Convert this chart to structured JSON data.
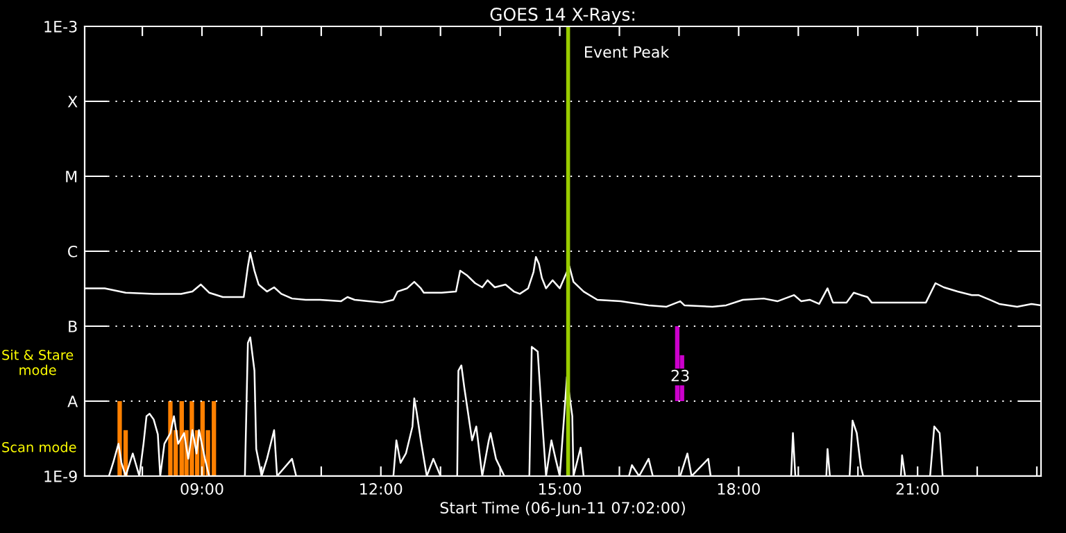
{
  "chart_data": {
    "type": "line",
    "title": "GOES 14 X-Rays:",
    "xlabel": "Start Time (06-Jun-11 07:02:00)",
    "log": "y",
    "grid": "y",
    "line_style": "solid",
    "marker": "none",
    "legend": false,
    "xlim": [
      7.033,
      23.07
    ],
    "ylim": [
      1e-09,
      0.001
    ],
    "xticks": [
      {
        "value": 8,
        "label": null
      },
      {
        "value": 9,
        "label": "09:00"
      },
      {
        "value": 10,
        "label": null
      },
      {
        "value": 11,
        "label": null
      },
      {
        "value": 12,
        "label": "12:00"
      },
      {
        "value": 13,
        "label": null
      },
      {
        "value": 14,
        "label": null
      },
      {
        "value": 15,
        "label": "15:00"
      },
      {
        "value": 16,
        "label": null
      },
      {
        "value": 17,
        "label": null
      },
      {
        "value": 18,
        "label": "18:00"
      },
      {
        "value": 19,
        "label": null
      },
      {
        "value": 20,
        "label": null
      },
      {
        "value": 21,
        "label": "21:00"
      },
      {
        "value": 22,
        "label": null
      },
      {
        "value": 23,
        "label": null
      }
    ],
    "yticks": [
      {
        "value": 1e-09,
        "label": "1E-9"
      },
      {
        "value": 1e-08,
        "label": "A"
      },
      {
        "value": 1e-07,
        "label": "B"
      },
      {
        "value": 1e-06,
        "label": "C"
      },
      {
        "value": 1e-05,
        "label": "M"
      },
      {
        "value": 0.0001,
        "label": "X"
      },
      {
        "value": 0.001,
        "label": "1E-3"
      }
    ],
    "series": [
      {
        "type": "bar",
        "color": "#ff8000",
        "x": [
          7.62,
          7.72,
          8.47,
          8.56,
          8.66,
          8.74,
          8.83,
          8.92,
          9.01,
          9.1,
          9.2
        ],
        "values": [
          1e-08,
          4.1e-09,
          1e-08,
          4.1e-09,
          1e-08,
          4.1e-09,
          1e-08,
          4.1e-09,
          1e-08,
          4.1e-09,
          1e-08
        ]
      },
      {
        "type": "bar",
        "color": "#cc00cc",
        "x": [
          16.97,
          17.05
        ],
        "base": [
          1e-08,
          1e-08
        ],
        "values": [
          9e-08,
          3.1e-08
        ]
      },
      {
        "color": "#ffffff",
        "x": [
          7.04,
          7.37,
          7.72,
          8.19,
          8.65,
          8.84,
          8.98,
          9.12,
          9.35,
          9.7,
          9.77,
          9.81,
          9.88,
          9.95,
          10.09,
          10.21,
          10.33,
          10.51,
          10.74,
          10.98,
          11.33,
          11.44,
          11.56,
          11.79,
          12.02,
          12.21,
          12.28,
          12.44,
          12.56,
          12.67,
          12.72,
          13.02,
          13.26,
          13.33,
          13.44,
          13.58,
          13.7,
          13.79,
          13.91,
          14.09,
          14.23,
          14.33,
          14.47,
          14.56,
          14.6,
          14.65,
          14.7,
          14.77,
          14.88,
          15.0,
          15.16,
          15.23,
          15.4,
          15.63,
          16.02,
          16.49,
          16.79,
          17.02,
          17.09,
          17.56,
          17.79,
          18.07,
          18.42,
          18.65,
          18.93,
          19.05,
          19.19,
          19.35,
          19.49,
          19.58,
          19.81,
          19.93,
          20.05,
          20.16,
          20.23,
          20.67,
          21.14,
          21.3,
          21.44,
          21.67,
          21.91,
          22.02,
          22.21,
          22.37,
          22.67,
          22.91,
          23.07
        ],
        "values": [
          3.2e-07,
          3.2e-07,
          2.8e-07,
          2.7e-07,
          2.7e-07,
          2.9e-07,
          3.6e-07,
          2.8e-07,
          2.45e-07,
          2.45e-07,
          6.3e-07,
          9.6e-07,
          5.5e-07,
          3.6e-07,
          2.9e-07,
          3.3e-07,
          2.7e-07,
          2.34e-07,
          2.25e-07,
          2.25e-07,
          2.15e-07,
          2.45e-07,
          2.25e-07,
          2.15e-07,
          2.07e-07,
          2.25e-07,
          2.9e-07,
          3.2e-07,
          3.9e-07,
          3.2e-07,
          2.8e-07,
          2.8e-07,
          2.9e-07,
          5.5e-07,
          4.8e-07,
          3.75e-07,
          3.3e-07,
          4.1e-07,
          3.3e-07,
          3.6e-07,
          2.9e-07,
          2.7e-07,
          3.2e-07,
          5.3e-07,
          8.4e-07,
          6.8e-07,
          4.4e-07,
          3.2e-07,
          4.1e-07,
          3.2e-07,
          6.3e-07,
          3.9e-07,
          2.9e-07,
          2.25e-07,
          2.15e-07,
          1.9e-07,
          1.82e-07,
          2.15e-07,
          1.9e-07,
          1.82e-07,
          1.9e-07,
          2.25e-07,
          2.34e-07,
          2.15e-07,
          2.6e-07,
          2.15e-07,
          2.25e-07,
          1.98e-07,
          3.2e-07,
          2.07e-07,
          2.07e-07,
          2.8e-07,
          2.6e-07,
          2.45e-07,
          2.07e-07,
          2.07e-07,
          2.07e-07,
          3.75e-07,
          3.3e-07,
          2.9e-07,
          2.6e-07,
          2.6e-07,
          2.25e-07,
          1.98e-07,
          1.82e-07,
          1.98e-07,
          1.9e-07
        ]
      },
      {
        "color": "#ffffff",
        "x": [
          7.04,
          7.44,
          7.51,
          7.6,
          7.65,
          7.72,
          7.84,
          7.95,
          8.02,
          8.07,
          8.12,
          8.19,
          8.26,
          8.3,
          8.37,
          8.47,
          8.53,
          8.6,
          8.7,
          8.77,
          8.84,
          8.91,
          8.95,
          9.05,
          9.12,
          9.72,
          9.77,
          9.81,
          9.88,
          9.91,
          10.0,
          10.09,
          10.21,
          10.26,
          10.51,
          10.58,
          12.21,
          12.26,
          12.33,
          12.42,
          12.53,
          12.56,
          12.6,
          12.67,
          12.77,
          12.88,
          13.0,
          13.28,
          13.3,
          13.35,
          13.4,
          13.47,
          13.53,
          13.6,
          13.7,
          13.81,
          13.84,
          13.93,
          14.07,
          14.49,
          14.53,
          14.63,
          14.7,
          14.77,
          14.86,
          14.93,
          15.0,
          15.09,
          15.12,
          15.21,
          15.23,
          15.35,
          15.4,
          16.16,
          16.21,
          16.33,
          16.49,
          16.56,
          17.02,
          17.14,
          17.21,
          17.49,
          17.53,
          18.88,
          18.91,
          18.95,
          19.47,
          19.49,
          19.53,
          19.86,
          19.91,
          19.98,
          20.05,
          20.09,
          20.72,
          20.74,
          20.79,
          21.21,
          21.28,
          21.37,
          21.42,
          23.07
        ],
        "values": [
          1e-09,
          1e-09,
          1.5e-09,
          2.7e-09,
          1.5e-09,
          1e-09,
          2e-09,
          1e-09,
          2.7e-09,
          6.3e-09,
          6.8e-09,
          5.7e-09,
          3.6e-09,
          1e-09,
          2.7e-09,
          3.75e-09,
          6.3e-09,
          2.7e-09,
          3.75e-09,
          1.7e-09,
          4.1e-09,
          2e-09,
          4.1e-09,
          1.7e-09,
          1e-09,
          1e-09,
          6e-08,
          7.1e-08,
          2.55e-08,
          2.3e-09,
          1e-09,
          1.7e-09,
          4.1e-09,
          1e-09,
          1.7e-09,
          1e-09,
          1e-09,
          3e-09,
          1.5e-09,
          2e-09,
          4.6e-09,
          1.09e-08,
          7.1e-09,
          3e-09,
          1e-09,
          1.7e-09,
          1e-09,
          1e-09,
          2.55e-08,
          3e-08,
          1.5e-08,
          6.3e-09,
          3e-09,
          4.6e-09,
          1e-09,
          3e-09,
          3.75e-09,
          1.7e-09,
          1e-09,
          1e-09,
          5.3e-08,
          4.6e-08,
          6.3e-09,
          1e-09,
          3e-09,
          1.7e-09,
          1e-09,
          9.6e-09,
          2.1e-08,
          6.3e-09,
          1e-09,
          2.4e-09,
          1e-09,
          1e-09,
          1.4e-09,
          1e-09,
          1.7e-09,
          1e-09,
          1e-09,
          2e-09,
          1e-09,
          1.7e-09,
          1e-09,
          1e-09,
          3.75e-09,
          1e-09,
          1e-09,
          2.3e-09,
          1e-09,
          1e-09,
          5.5e-09,
          3.75e-09,
          1.3e-09,
          1e-09,
          1e-09,
          1.9e-09,
          1e-09,
          1e-09,
          4.6e-09,
          3.75e-09,
          1e-09,
          1e-09
        ]
      }
    ],
    "ref_lines": [
      {
        "axis": "x",
        "value": 15.14,
        "label": "Event Peak",
        "color": "#99cc00",
        "line_style": "solid"
      }
    ],
    "annotations": [
      "Sit & Stare\nmode",
      "Scan mode",
      {
        "text": "23",
        "x": 17.02,
        "y": 2.1e-08
      }
    ]
  }
}
